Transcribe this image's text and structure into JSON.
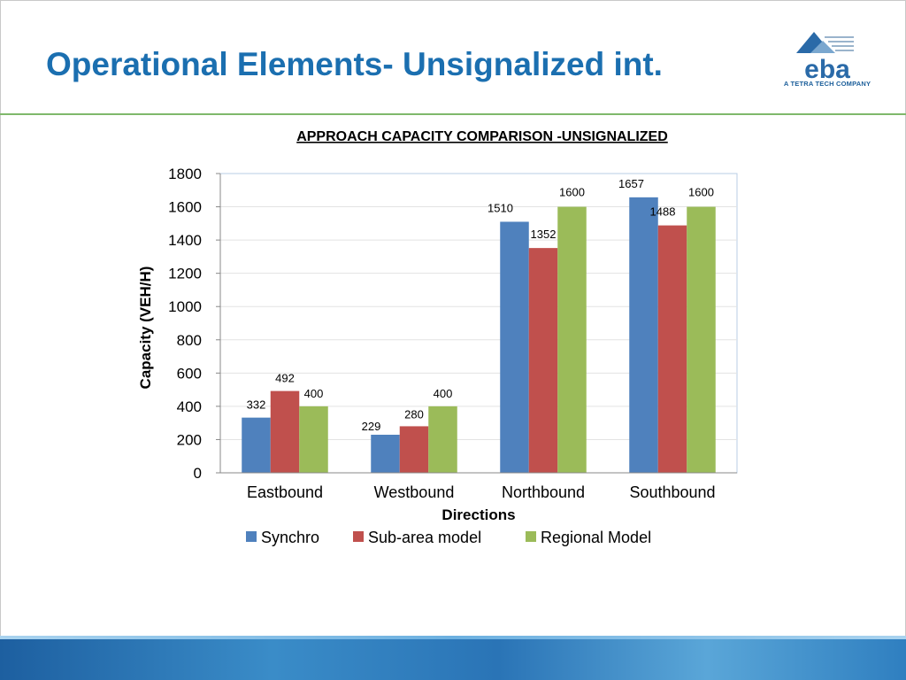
{
  "slide": {
    "title": "Operational Elements- Unsignalized int.",
    "logo_text": "eba",
    "logo_tagline": "A TETRA TECH COMPANY"
  },
  "colors": {
    "title": "#1b6fb0",
    "rule": "#7fb86b",
    "synchro": "#4f81bd",
    "subarea": "#c0504d",
    "regional": "#9bbb59"
  },
  "chart_data": {
    "type": "bar",
    "title": "APPROACH CAPACITY COMPARISON -UNSIGNALIZED",
    "xlabel": "Directions",
    "ylabel": "Capacity (VEH/H)",
    "categories": [
      "Eastbound",
      "Westbound",
      "Northbound",
      "Southbound"
    ],
    "series": [
      {
        "name": "Synchro",
        "color": "#4f81bd",
        "values": [
          332,
          229,
          1510,
          1657
        ]
      },
      {
        "name": "Sub-area model",
        "color": "#c0504d",
        "values": [
          492,
          280,
          1352,
          1488
        ]
      },
      {
        "name": "Regional Model",
        "color": "#9bbb59",
        "values": [
          400,
          400,
          1600,
          1600
        ]
      }
    ],
    "ylim": [
      0,
      1800
    ],
    "yticks": [
      "0",
      "200",
      "400",
      "600",
      "800",
      "1000",
      "1200",
      "1400",
      "1600",
      "1800"
    ],
    "grid": true,
    "legend": "bottom"
  }
}
